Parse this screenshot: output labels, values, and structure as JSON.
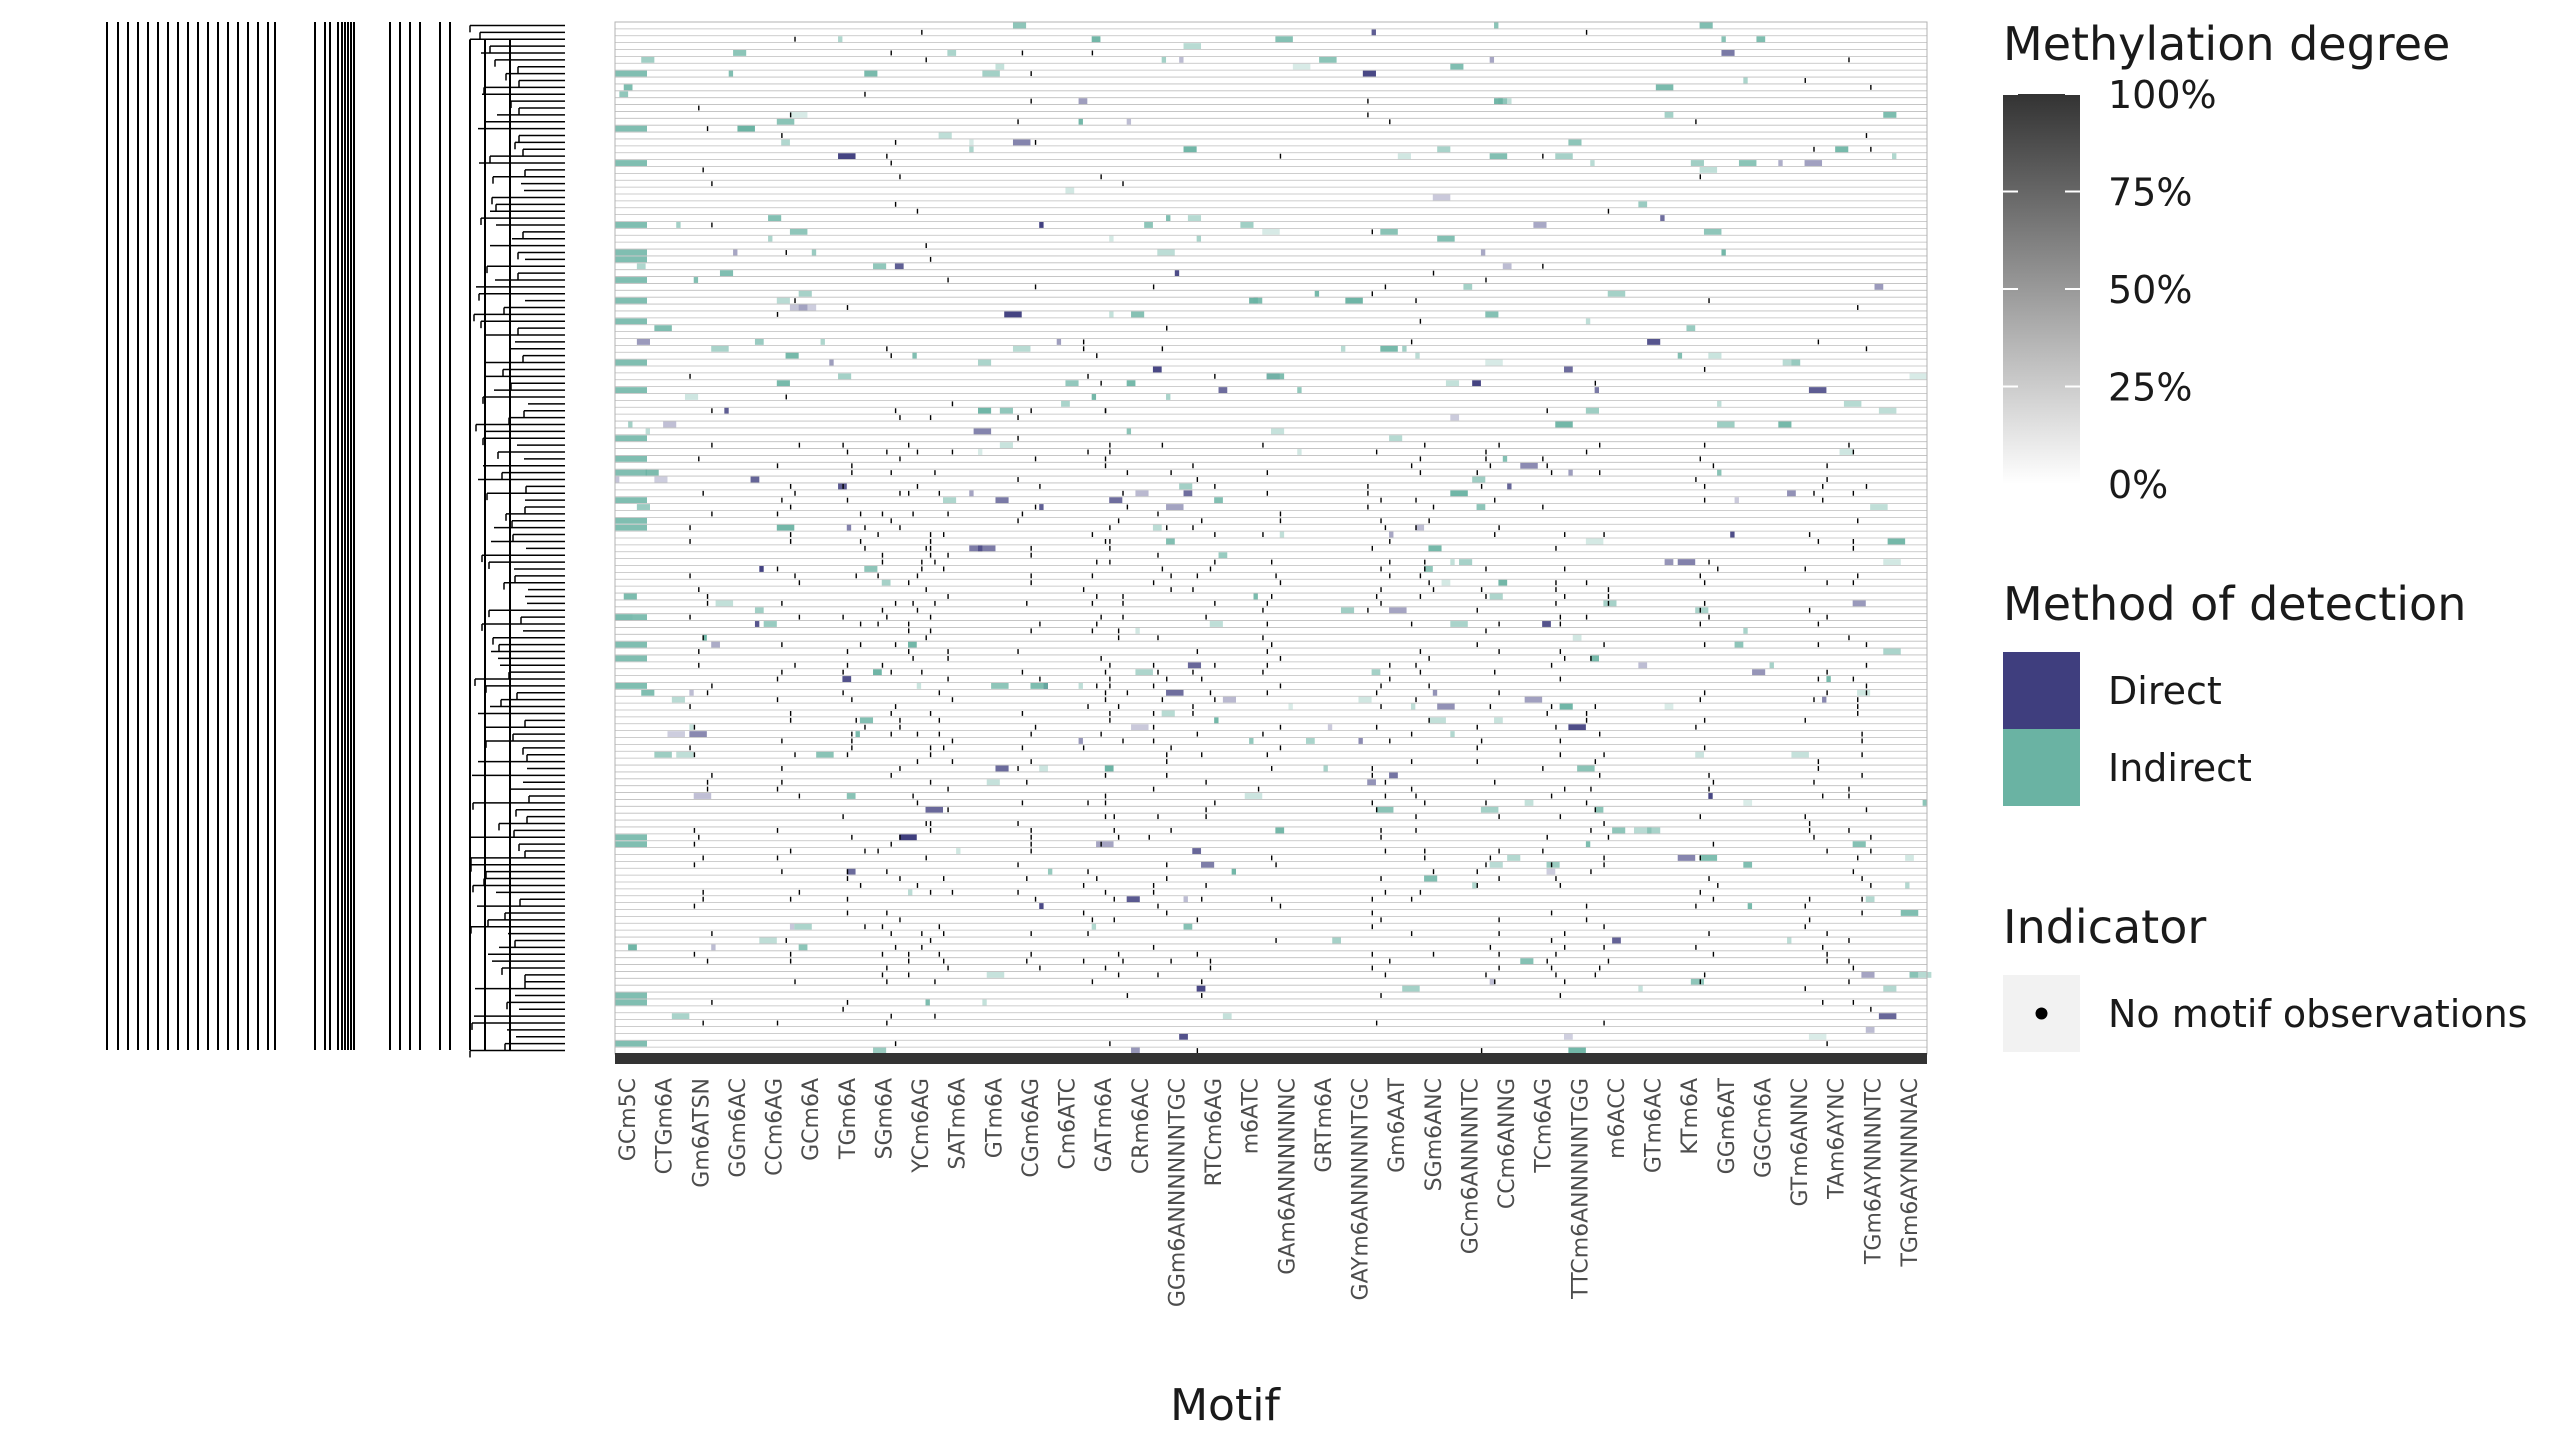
{
  "chart_data": {
    "type": "heatmap",
    "title": "",
    "xlabel": "Motif",
    "ylabel": "",
    "y_tick_labels_visible": false,
    "dendrogram": "left",
    "grid": true,
    "legend_position": "right",
    "x_ticks_visible": [
      "GCm5C",
      "CTGm6A",
      "Gm6ATSN",
      "GGm6AC",
      "CCm6AG",
      "GCm6A",
      "TGm6A",
      "SGm6A",
      "YCm6AG",
      "SATm6A",
      "GTm6A",
      "CGm6AG",
      "Cm6ATC",
      "GATm6A",
      "CRm6AC",
      "GGm6ANNNNNNTGC",
      "RTCm6AG",
      "m6ATC",
      "GAm6ANNNNNNC",
      "GRTm6A",
      "GAYm6ANNNNNTGC",
      "Gm6AAT",
      "SGm6ANC",
      "GCm6ANNNNTC",
      "CCm6ANNG",
      "TCm6AG",
      "TTCm6ANNNNNTGG",
      "m6ACC",
      "GTm6AC",
      "KTm6A",
      "GGm6AT",
      "GGCm6A",
      "GTm6ANNC",
      "TAm6AYNC",
      "TGm6AYNNNNTC",
      "TGm6AYNNNNAC"
    ],
    "row_count": 150,
    "column_count": 300,
    "legends": {
      "methylation_degree": {
        "title": "Methylation degree",
        "type": "gradient",
        "low_color": "#ffffff",
        "high_color": "#333333",
        "ticks": [
          "100%",
          "75%",
          "50%",
          "25%",
          "0%"
        ],
        "tick_values": [
          1.0,
          0.75,
          0.5,
          0.25,
          0.0
        ]
      },
      "method_of_detection": {
        "title": "Method of detection",
        "items": [
          {
            "label": "Direct",
            "color": "#3f3e7e"
          },
          {
            "label": "Indirect",
            "color": "#6ab3a3"
          }
        ]
      },
      "indicator": {
        "title": "Indicator",
        "items": [
          {
            "label": "No motif observations",
            "symbol": "dot",
            "color": "#000000"
          }
        ]
      }
    },
    "colors": {
      "panel_border": "#b3b3b3",
      "row_rule": "#bdbdbd",
      "bottom_bar": "#333333",
      "tick_text": "#4d4d4d",
      "title_text": "#1a1a1a"
    }
  }
}
